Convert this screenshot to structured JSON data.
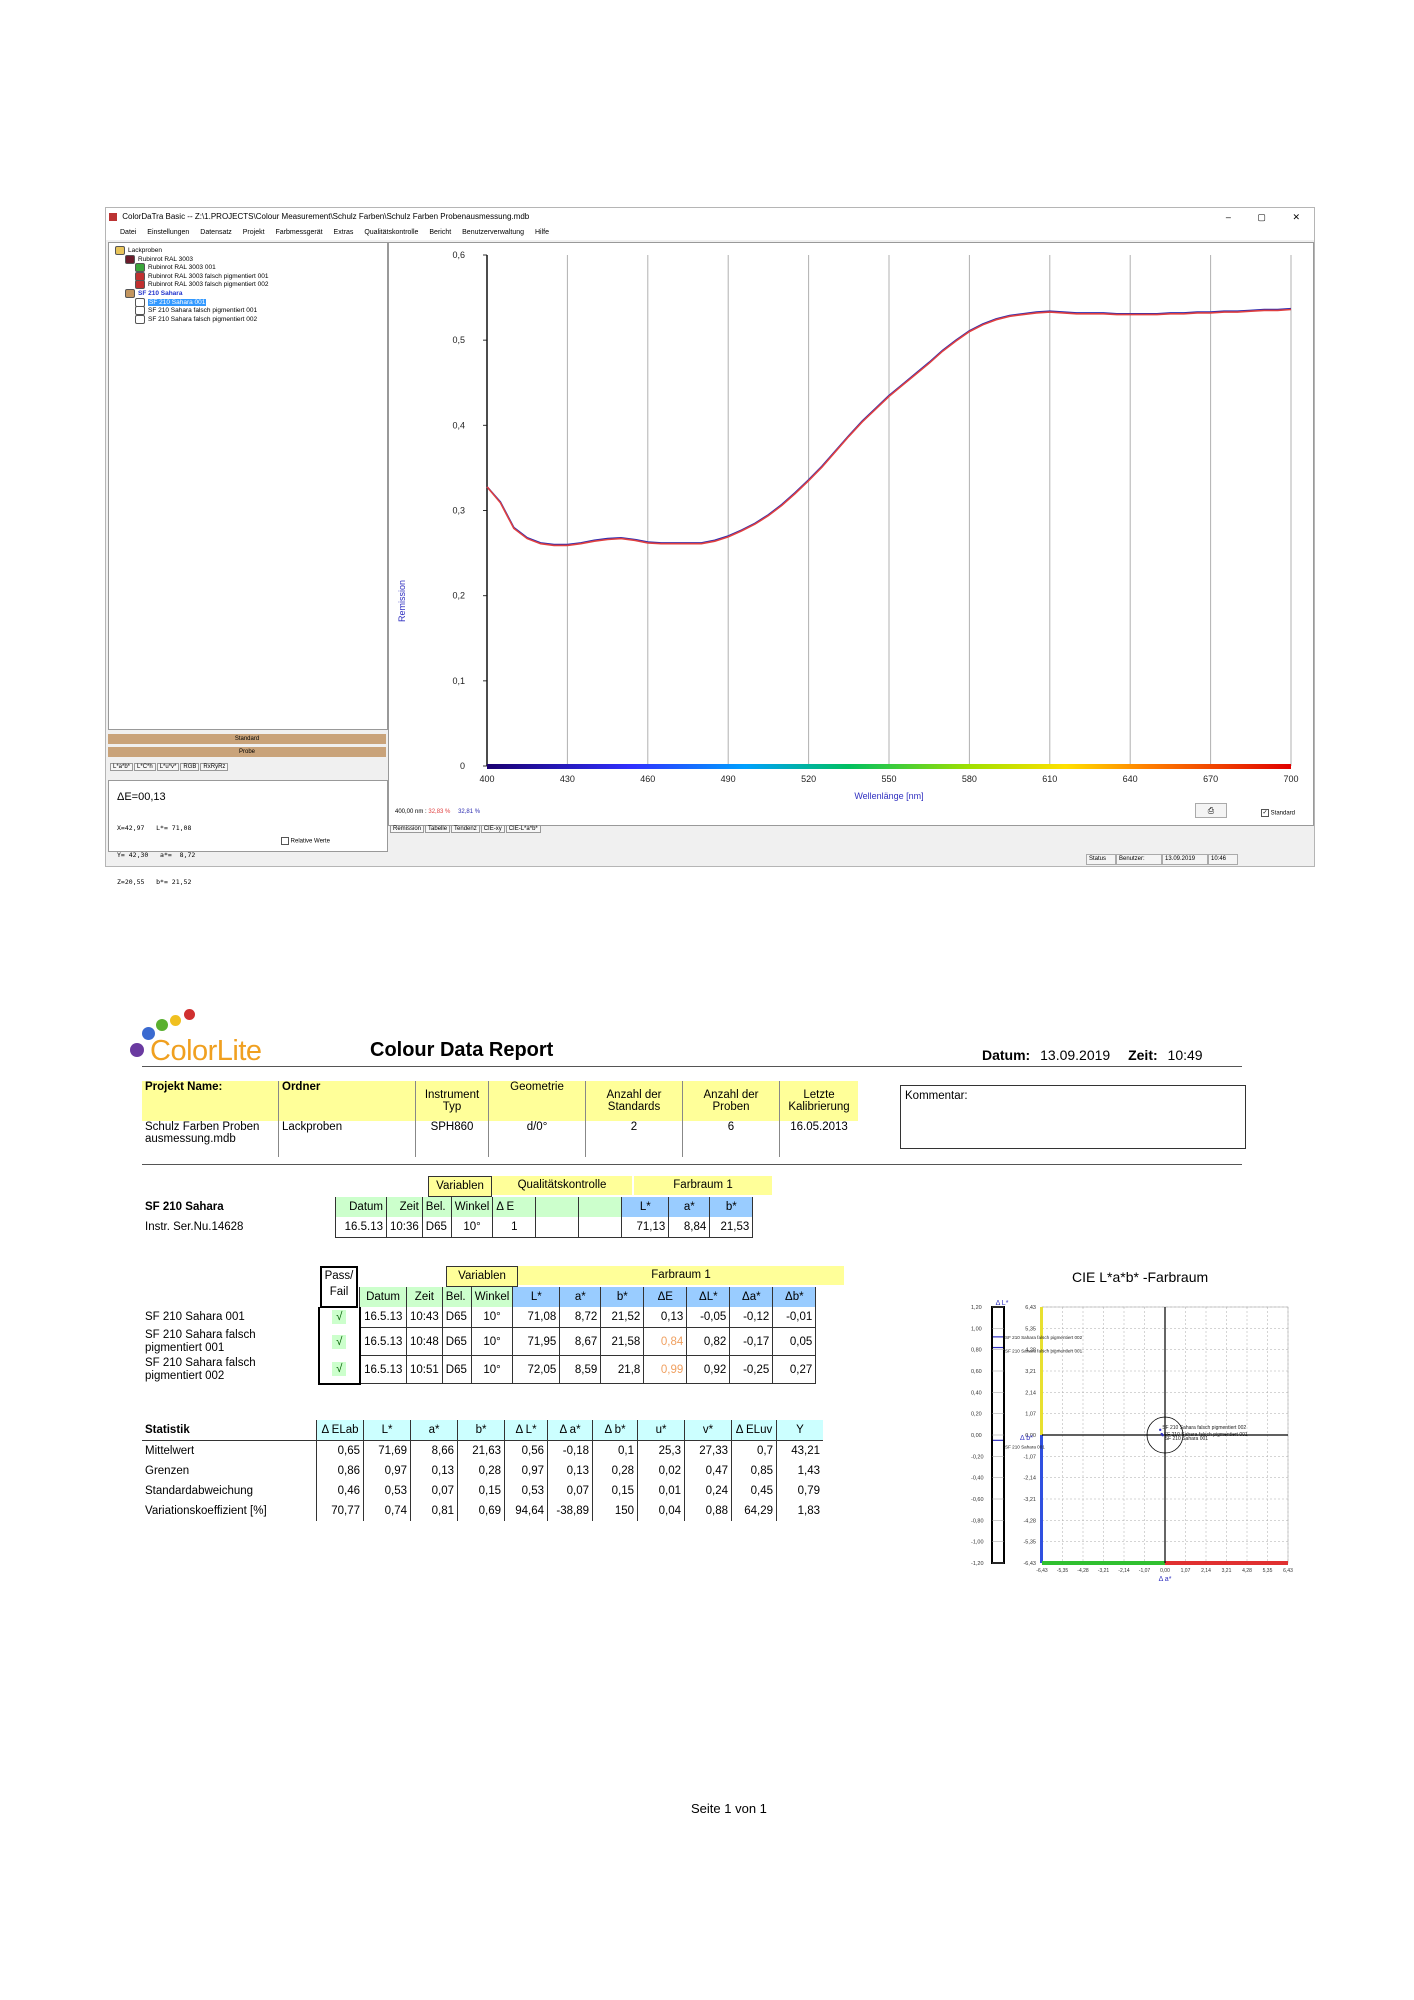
{
  "app": {
    "title": "ColorDaTra Basic -- Z:\\1.PROJECTS\\Colour Measurement\\Schulz Farben\\Schulz Farben Probenausmessung.mdb",
    "window_controls": [
      "–",
      "▢",
      "✕"
    ],
    "menu": [
      "Datei",
      "Einstellungen",
      "Datensatz",
      "Projekt",
      "Farbmessgerät",
      "Extras",
      "Qualitätskontrolle",
      "Bericht",
      "Benutzerverwaltung",
      "Hilfe"
    ],
    "tree": [
      {
        "label": "Lackproben",
        "level": 0,
        "icon": "folder",
        "color": "#e8c45a"
      },
      {
        "label": "Rubinrot RAL 3003",
        "level": 1,
        "icon": "standard",
        "color": "#6b1b2b"
      },
      {
        "label": "Rubinrot RAL 3003 001",
        "level": 2,
        "icon": "sample",
        "color": "#3aa53a"
      },
      {
        "label": "Rubinrot RAL 3003 falsch pigmentiert 001",
        "level": 2,
        "icon": "sample",
        "color": "#c03030"
      },
      {
        "label": "Rubinrot RAL 3003 falsch pigmentiert 002",
        "level": 2,
        "icon": "sample",
        "color": "#c03030"
      },
      {
        "label": "SF 210 Sahara",
        "level": 1,
        "icon": "standard",
        "color": "#c2955f"
      },
      {
        "label": "SF 210 Sahara 001",
        "level": 2,
        "icon": "sample",
        "color": "#ffffff",
        "selected": true
      },
      {
        "label": "SF 210 Sahara falsch pigmentiert 001",
        "level": 2,
        "icon": "sample",
        "color": "#ffffff"
      },
      {
        "label": "SF 210 Sahara falsch pigmentiert 002",
        "level": 2,
        "icon": "sample",
        "color": "#ffffff"
      }
    ],
    "left_bars": [
      "Standard",
      "Probe"
    ],
    "left_tabs": [
      "L*a*b*",
      "L*C*h",
      "L*u*v*",
      "RGB",
      "RxRyRz"
    ],
    "delta_e": "ΔE=00,13",
    "color_values": [
      "X=42,97   L*= 71,08",
      "Y= 42,30   a*=  8,72",
      "Z=20,55   b*= 21,52"
    ],
    "relative_label": "Relative Werte",
    "readout_prefix": "400,00 nm :",
    "readout_value1": "32,83 %",
    "readout_value2": "32,81 %",
    "standard_check": "Standard",
    "bottom_tabs": [
      "Remission",
      "Tabelle",
      "Tendenz",
      "CIE-xy",
      "CIE-L*a*b*"
    ],
    "status": [
      "Status",
      "Benutzer:",
      "13.09.2019",
      "10:46"
    ]
  },
  "chart_data": {
    "type": "line",
    "xlabel": "Wellenlänge [nm]",
    "ylabel": "Remission",
    "xlim": [
      400,
      700
    ],
    "ylim": [
      0,
      0.6
    ],
    "x_ticks": [
      "400",
      "430",
      "460",
      "490",
      "520",
      "550",
      "580",
      "610",
      "640",
      "670",
      "700"
    ],
    "y_ticks": [
      "0",
      "0,1",
      "0,2",
      "0,3",
      "0,4",
      "0,5",
      "0,6"
    ],
    "grid": true,
    "x": [
      400,
      405,
      410,
      415,
      420,
      425,
      430,
      435,
      440,
      445,
      450,
      455,
      460,
      465,
      470,
      475,
      480,
      485,
      490,
      495,
      500,
      505,
      510,
      515,
      520,
      525,
      530,
      535,
      540,
      545,
      550,
      555,
      560,
      565,
      570,
      575,
      580,
      585,
      590,
      595,
      600,
      605,
      610,
      615,
      620,
      625,
      630,
      635,
      640,
      645,
      650,
      655,
      660,
      665,
      670,
      675,
      680,
      685,
      690,
      695,
      700
    ],
    "series": [
      {
        "color": "#2b2bb0",
        "values": [
          0.328,
          0.31,
          0.28,
          0.268,
          0.262,
          0.26,
          0.26,
          0.262,
          0.265,
          0.267,
          0.268,
          0.266,
          0.263,
          0.262,
          0.262,
          0.262,
          0.262,
          0.265,
          0.27,
          0.277,
          0.285,
          0.295,
          0.307,
          0.321,
          0.336,
          0.352,
          0.37,
          0.388,
          0.405,
          0.42,
          0.435,
          0.448,
          0.461,
          0.474,
          0.488,
          0.5,
          0.511,
          0.519,
          0.525,
          0.529,
          0.531,
          0.533,
          0.534,
          0.533,
          0.532,
          0.532,
          0.532,
          0.531,
          0.531,
          0.531,
          0.531,
          0.532,
          0.532,
          0.533,
          0.533,
          0.534,
          0.534,
          0.535,
          0.536,
          0.536,
          0.537
        ]
      },
      {
        "color": "#e04040",
        "values": [
          0.328,
          0.309,
          0.279,
          0.267,
          0.261,
          0.259,
          0.259,
          0.261,
          0.264,
          0.266,
          0.267,
          0.265,
          0.262,
          0.261,
          0.261,
          0.261,
          0.261,
          0.264,
          0.269,
          0.276,
          0.284,
          0.294,
          0.306,
          0.32,
          0.335,
          0.351,
          0.369,
          0.387,
          0.404,
          0.419,
          0.434,
          0.447,
          0.46,
          0.473,
          0.487,
          0.499,
          0.51,
          0.518,
          0.524,
          0.528,
          0.53,
          0.532,
          0.533,
          0.532,
          0.531,
          0.531,
          0.531,
          0.53,
          0.53,
          0.53,
          0.53,
          0.531,
          0.531,
          0.532,
          0.532,
          0.533,
          0.533,
          0.534,
          0.535,
          0.535,
          0.536
        ]
      }
    ]
  },
  "report": {
    "logo_text": "ColorLite",
    "title": "Colour Data Report",
    "datum_label": "Datum:",
    "datum_value": "13.09.2019",
    "zeit_label": "Zeit:",
    "zeit_value": "10:49",
    "kommentar_label": "Kommentar:",
    "project_headers": [
      "Projekt Name:",
      "Ordner",
      "Instrument Typ",
      "Geometrie",
      "Anzahl der Standards",
      "Anzahl der Proben",
      "Letzte Kalibrierung"
    ],
    "project_values": [
      "Schulz Farben Proben ausmessung.mdb",
      "Lackproben",
      "SPH860",
      "d/0°",
      "2",
      "6",
      "16.05.2013"
    ],
    "std_groups": {
      "variablen": "Variablen",
      "qk": "Qualitätskontrolle",
      "farbraum": "Farbraum 1"
    },
    "std_headers": {
      "name": "SF 210 Sahara",
      "datum": "Datum",
      "zeit": "Zeit",
      "bel": "Bel.",
      "winkel": "Winkel",
      "de": "Δ E",
      "l": "L*",
      "a": "a*",
      "b": "b*"
    },
    "std_row": {
      "name": "Instr. Ser.Nu.14628",
      "datum": "16.5.13",
      "zeit": "10:36",
      "bel": "D65",
      "winkel": "10°",
      "de": "1",
      "l": "71,13",
      "a": "8,84",
      "b": "21,53"
    },
    "sample_groups": {
      "passfail": "Pass/ Fail",
      "variablen": "Variablen",
      "farbraum": "Farbraum 1"
    },
    "sample_headers": [
      "Datum",
      "Zeit",
      "Bel.",
      "Winkel",
      "L*",
      "a*",
      "b*",
      "ΔE",
      "ΔL*",
      "Δa*",
      "Δb*"
    ],
    "samples": [
      {
        "name": "SF 210 Sahara  001",
        "pf": "√",
        "vals": [
          "16.5.13",
          "10:43",
          "D65",
          "10°",
          "71,08",
          "8,72",
          "21,52",
          "0,13",
          "-0,05",
          "-0,12",
          "-0,01"
        ]
      },
      {
        "name": "SF 210 Sahara falsch pigmentiert 001",
        "pf": "√",
        "vals": [
          "16.5.13",
          "10:48",
          "D65",
          "10°",
          "71,95",
          "8,67",
          "21,58",
          "0,84",
          "0,82",
          "-0,17",
          "0,05"
        ]
      },
      {
        "name": "SF 210 Sahara falsch pigmentiert 002",
        "pf": "√",
        "vals": [
          "16.5.13",
          "10:51",
          "D65",
          "10°",
          "72,05",
          "8,59",
          "21,8",
          "0,99",
          "0,92",
          "-0,25",
          "0,27"
        ]
      }
    ],
    "de_warn_color": "#f0a060",
    "stat_title": "Statistik",
    "stat_headers": [
      "Δ ELab",
      "L*",
      "a*",
      "b*",
      "Δ L*",
      "Δ a*",
      "Δ b*",
      "u*",
      "v*",
      "Δ ELuv",
      "Y"
    ],
    "stats": [
      {
        "label": "Mittelwert",
        "vals": [
          "0,65",
          "71,69",
          "8,66",
          "21,63",
          "0,56",
          "-0,18",
          "0,1",
          "25,3",
          "27,33",
          "0,7",
          "43,21"
        ]
      },
      {
        "label": "Grenzen",
        "vals": [
          "0,86",
          "0,97",
          "0,13",
          "0,28",
          "0,97",
          "0,13",
          "0,28",
          "0,02",
          "0,47",
          "0,85",
          "1,43"
        ]
      },
      {
        "label": "Standardabweichung",
        "vals": [
          "0,46",
          "0,53",
          "0,07",
          "0,15",
          "0,53",
          "0,07",
          "0,15",
          "0,01",
          "0,24",
          "0,45",
          "0,79"
        ]
      },
      {
        "label": "Variationskoeffizient [%]",
        "vals": [
          "70,77",
          "0,74",
          "0,81",
          "0,69",
          "94,64",
          "-38,89",
          "150",
          "0,04",
          "0,88",
          "64,29",
          "1,83"
        ]
      }
    ],
    "cie_title": "CIE L*a*b* -Farbraum",
    "cie_dl_label": "Δ L*",
    "cie_db_label": "Δ b*",
    "cie_da_label": "Δ a*",
    "cie_dl_ticks": [
      "1,20",
      "1,00",
      "0,80",
      "0,60",
      "0,40",
      "0,20",
      "0,00",
      "-0,20",
      "-0,40",
      "-0,60",
      "-0,80",
      "-1,00",
      "-1,20"
    ],
    "cie_db_ticks": [
      "6,43",
      "5,35",
      "4,28",
      "3,21",
      "2,14",
      "1,07",
      "0,00",
      "-1,07",
      "-2,14",
      "-3,21",
      "-4,28",
      "-5,35",
      "-6,43"
    ],
    "cie_da_ticks": [
      "-6,43",
      "-5,35",
      "-4,28",
      "-3,21",
      "-2,14",
      "-1,07",
      "0,00",
      "1,07",
      "2,14",
      "3,21",
      "4,28",
      "5,35",
      "6,43"
    ],
    "cie_points": [
      {
        "label": "SF 210 Sahara falsch pigmentiert 002",
        "dl": 0.92,
        "da": -0.25,
        "db": 0.27
      },
      {
        "label": "SF 210 Sahara falsch pigmentiert 001",
        "dl": 0.82,
        "da": -0.17,
        "db": 0.05
      },
      {
        "label": "SF 210 Sahara  001",
        "dl": -0.05,
        "da": -0.12,
        "db": -0.01
      }
    ],
    "page_footer": "Seite 1 von 1"
  }
}
